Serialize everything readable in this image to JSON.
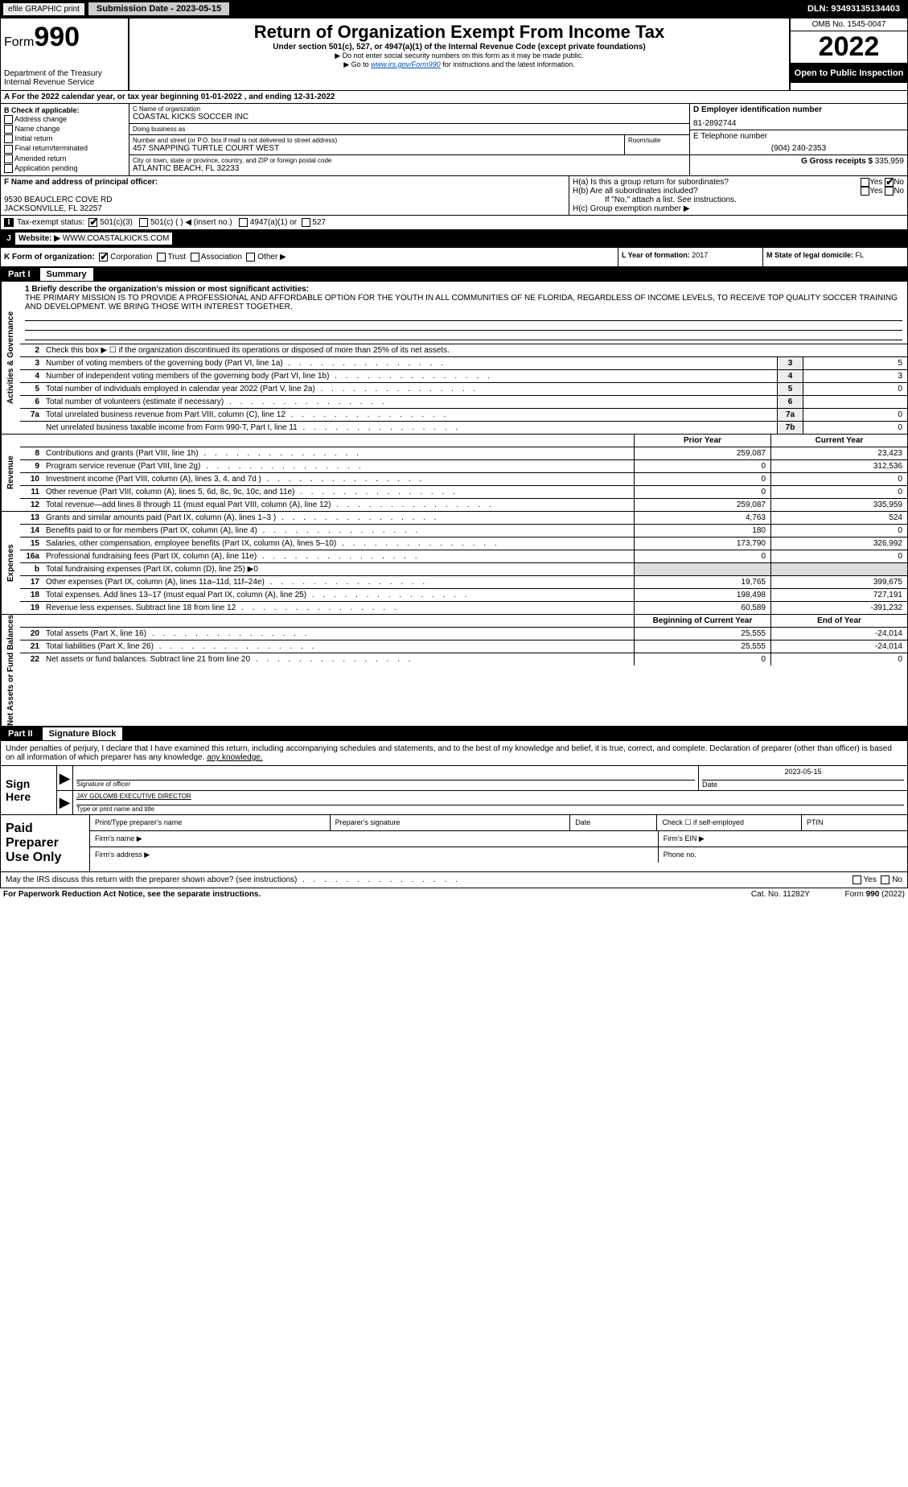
{
  "topbar": {
    "efile": "efile GRAPHIC print",
    "subm_label": "Submission Date - 2023-05-15",
    "dln": "DLN: 93493135134403"
  },
  "header": {
    "form_label": "Form",
    "form_num": "990",
    "dept": "Department of the Treasury Internal Revenue Service",
    "title": "Return of Organization Exempt From Income Tax",
    "subtitle": "Under section 501(c), 527, or 4947(a)(1) of the Internal Revenue Code (except private foundations)",
    "note1": "▶ Do not enter social security numbers on this form as it may be made public.",
    "note2_pre": "▶ Go to ",
    "note2_link": "www.irs.gov/Form990",
    "note2_post": " for instructions and the latest information.",
    "omb": "OMB No. 1545-0047",
    "year": "2022",
    "open": "Open to Public Inspection"
  },
  "a_line": "A For the 2022 calendar year, or tax year beginning 01-01-2022     , and ending 12-31-2022",
  "b": {
    "title": "B Check if applicable:",
    "items": [
      "Address change",
      "Name change",
      "Initial return",
      "Final return/terminated",
      "Amended return",
      "Application pending"
    ]
  },
  "c": {
    "name_label": "C Name of organization",
    "name": "COASTAL KICKS SOCCER INC",
    "dba_label": "Doing business as",
    "dba": "",
    "addr_label": "Number and street (or P.O. box if mail is not delivered to street address)",
    "addr": "457 SNAPPING TURTLE COURT WEST",
    "room_label": "Room/suite",
    "city_label": "City or town, state or province, country, and ZIP or foreign postal code",
    "city": "ATLANTIC BEACH, FL  32233"
  },
  "d": {
    "label": "D Employer identification number",
    "val": "81-2892744"
  },
  "e": {
    "label": "E Telephone number",
    "val": "(904) 240-2353"
  },
  "g": {
    "label": "G Gross receipts $",
    "val": "335,959"
  },
  "f": {
    "label": "F Name and address of principal officer:",
    "line1": "9530 BEAUCLERC COVE RD",
    "line2": "JACKSONVILLE, FL  32257"
  },
  "h": {
    "a": "H(a)  Is this a group return for subordinates?",
    "b": "H(b)  Are all subordinates included?",
    "b_note": "If \"No,\" attach a list. See instructions.",
    "c": "H(c)  Group exemption number ▶"
  },
  "i": {
    "label": "Tax-exempt status:",
    "opt1": "501(c)(3)",
    "opt2": "501(c) (   ) ◀ (insert no.)",
    "opt3": "4947(a)(1) or",
    "opt4": "527"
  },
  "j": {
    "label": "Website: ▶",
    "val": "WWW.COASTALKICKS.COM"
  },
  "k": {
    "label": "K Form of organization:",
    "corp": "Corporation",
    "trust": "Trust",
    "assoc": "Association",
    "other": "Other ▶"
  },
  "l": {
    "label": "L Year of formation:",
    "val": "2017"
  },
  "m": {
    "label": "M State of legal domicile:",
    "val": "FL"
  },
  "part1": {
    "tab": "Part I",
    "title": "Summary"
  },
  "mission": {
    "q": "1  Briefly describe the organization's mission or most significant activities:",
    "text": "THE PRIMARY MISSION IS TO PROVIDE A PROFESSIONAL AND AFFORDABLE OPTION FOR THE YOUTH IN ALL COMMUNITIES OF NE FLORIDA, REGARDLESS OF INCOME LEVELS, TO RECEIVE TOP QUALITY SOCCER TRAINING AND DEVELOPMENT. WE BRING THOSE WITH INTEREST TOGETHER."
  },
  "gov": {
    "l2": "Check this box ▶ ☐ if the organization discontinued its operations or disposed of more than 25% of its net assets.",
    "rows": [
      {
        "n": "3",
        "t": "Number of voting members of the governing body (Part VI, line 1a)",
        "box": "3",
        "v": "5"
      },
      {
        "n": "4",
        "t": "Number of independent voting members of the governing body (Part VI, line 1b)",
        "box": "4",
        "v": "3"
      },
      {
        "n": "5",
        "t": "Total number of individuals employed in calendar year 2022 (Part V, line 2a)",
        "box": "5",
        "v": "0"
      },
      {
        "n": "6",
        "t": "Total number of volunteers (estimate if necessary)",
        "box": "6",
        "v": ""
      },
      {
        "n": "7a",
        "t": "Total unrelated business revenue from Part VIII, column (C), line 12",
        "box": "7a",
        "v": "0"
      },
      {
        "n": "",
        "t": "Net unrelated business taxable income from Form 990-T, Part I, line 11",
        "box": "7b",
        "v": "0"
      }
    ]
  },
  "rev_hdr": {
    "prior": "Prior Year",
    "cur": "Current Year"
  },
  "revenue": [
    {
      "n": "8",
      "t": "Contributions and grants (Part VIII, line 1h)",
      "p": "259,087",
      "c": "23,423"
    },
    {
      "n": "9",
      "t": "Program service revenue (Part VIII, line 2g)",
      "p": "0",
      "c": "312,536"
    },
    {
      "n": "10",
      "t": "Investment income (Part VIII, column (A), lines 3, 4, and 7d )",
      "p": "0",
      "c": "0"
    },
    {
      "n": "11",
      "t": "Other revenue (Part VIII, column (A), lines 5, 6d, 8c, 9c, 10c, and 11e)",
      "p": "0",
      "c": "0"
    },
    {
      "n": "12",
      "t": "Total revenue—add lines 8 through 11 (must equal Part VIII, column (A), line 12)",
      "p": "259,087",
      "c": "335,959"
    }
  ],
  "expenses": [
    {
      "n": "13",
      "t": "Grants and similar amounts paid (Part IX, column (A), lines 1–3 )",
      "p": "4,763",
      "c": "524"
    },
    {
      "n": "14",
      "t": "Benefits paid to or for members (Part IX, column (A), line 4)",
      "p": "180",
      "c": "0"
    },
    {
      "n": "15",
      "t": "Salaries, other compensation, employee benefits (Part IX, column (A), lines 5–10)",
      "p": "173,790",
      "c": "326,992"
    },
    {
      "n": "16a",
      "t": "Professional fundraising fees (Part IX, column (A), line 11e)",
      "p": "0",
      "c": "0"
    },
    {
      "n": "b",
      "t": "Total fundraising expenses (Part IX, column (D), line 25) ▶0",
      "p": "",
      "c": "",
      "shade": true
    },
    {
      "n": "17",
      "t": "Other expenses (Part IX, column (A), lines 11a–11d, 11f–24e)",
      "p": "19,765",
      "c": "399,675"
    },
    {
      "n": "18",
      "t": "Total expenses. Add lines 13–17 (must equal Part IX, column (A), line 25)",
      "p": "198,498",
      "c": "727,191"
    },
    {
      "n": "19",
      "t": "Revenue less expenses. Subtract line 18 from line 12",
      "p": "60,589",
      "c": "-391,232"
    }
  ],
  "na_hdr": {
    "prior": "Beginning of Current Year",
    "cur": "End of Year"
  },
  "netassets": [
    {
      "n": "20",
      "t": "Total assets (Part X, line 16)",
      "p": "25,555",
      "c": "-24,014"
    },
    {
      "n": "21",
      "t": "Total liabilities (Part X, line 26)",
      "p": "25,555",
      "c": "-24,014"
    },
    {
      "n": "22",
      "t": "Net assets or fund balances. Subtract line 21 from line 20",
      "p": "0",
      "c": "0"
    }
  ],
  "sides": {
    "gov": "Activities & Governance",
    "rev": "Revenue",
    "exp": "Expenses",
    "na": "Net Assets or Fund Balances"
  },
  "part2": {
    "tab": "Part II",
    "title": "Signature Block"
  },
  "sig": {
    "decl": "Under penalties of perjury, I declare that I have examined this return, including accompanying schedules and statements, and to the best of my knowledge and belief, it is true, correct, and complete. Declaration of preparer (other than officer) is based on all information of which preparer has any knowledge.",
    "sign_here": "Sign Here",
    "sig_label": "Signature of officer",
    "date_label": "Date",
    "date_val": "2023-05-15",
    "name_val": "JAY GOLOMB  EXECUTIVE DIRECTOR",
    "name_label": "Type or print name and title"
  },
  "prep": {
    "label": "Paid Preparer Use Only",
    "h1": "Print/Type preparer's name",
    "h2": "Preparer's signature",
    "h3": "Date",
    "h4_pre": "Check ☐ if self-employed",
    "h5": "PTIN",
    "firm_name": "Firm's name   ▶",
    "firm_ein": "Firm's EIN ▶",
    "firm_addr": "Firm's address ▶",
    "phone": "Phone no."
  },
  "irs_q": "May the IRS discuss this return with the preparer shown above? (see instructions)",
  "yes": "Yes",
  "no": "No",
  "footer": {
    "f1": "For Paperwork Reduction Act Notice, see the separate instructions.",
    "f2": "Cat. No. 11282Y",
    "f3": "Form 990 (2022)"
  }
}
